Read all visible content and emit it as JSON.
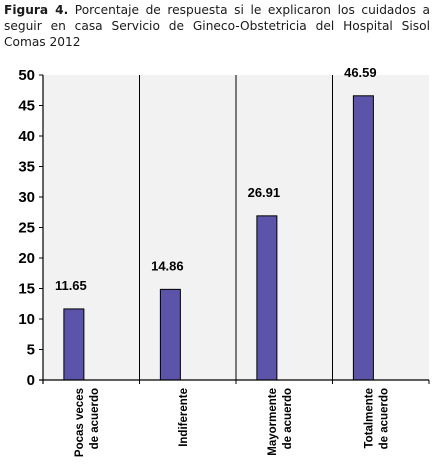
{
  "caption": {
    "label": "Figura 4.",
    "text": " Porcentaje de respuesta si le explicaron los cuidados a seguir en casa Servicio de Gineco-Obstetricia del Hospital Sisol Comas 2012"
  },
  "colors": {
    "bar": "#5b54a8",
    "plot_bg": "#f2f2f2",
    "axis": "#000000"
  },
  "chart_data": {
    "type": "bar",
    "categories": [
      [
        "Pocas veces",
        "de acuerdo"
      ],
      [
        "Indiferente"
      ],
      [
        "Mayormente",
        "de acuerdo"
      ],
      [
        "Totalmente",
        "de acuerdo"
      ]
    ],
    "values": [
      11.65,
      14.86,
      26.91,
      46.59
    ],
    "data_labels": [
      "11.65",
      "14.86",
      "26.91",
      "46.59"
    ],
    "ylim": [
      0,
      50
    ],
    "yticks": [
      0,
      5,
      10,
      15,
      20,
      25,
      30,
      35,
      40,
      45,
      50
    ],
    "grid": false,
    "legend": "none"
  }
}
